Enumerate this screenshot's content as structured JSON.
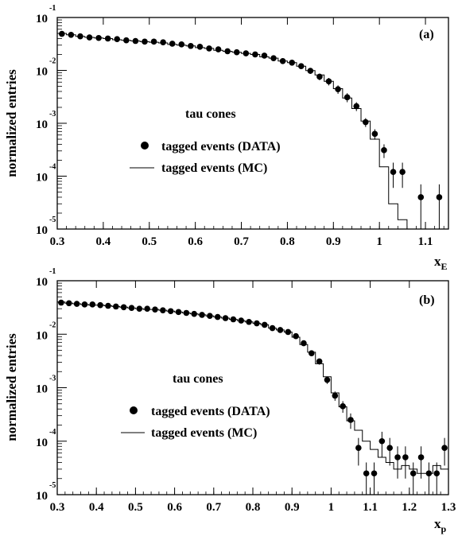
{
  "chart_data": [
    {
      "type": "scatter",
      "panel_label": "(a)",
      "ylabel": "normalized entries",
      "xlabel_main": "x",
      "xlabel_sub": "E",
      "xlim": [
        0.3,
        1.15
      ],
      "ylim": [
        1e-05,
        0.1
      ],
      "yscale": "log",
      "x_ticks": [
        "0.3",
        "0.4",
        "0.5",
        "0.6",
        "0.7",
        "0.8",
        "0.9",
        "1",
        "1.1"
      ],
      "x_tick_values": [
        0.3,
        0.4,
        0.5,
        0.6,
        0.7,
        0.8,
        0.9,
        1.0,
        1.1
      ],
      "y_ticks": [
        {
          "base": "10",
          "exp": "-1",
          "value": 0.1
        },
        {
          "base": "10",
          "exp": "-2",
          "value": 0.01
        },
        {
          "base": "10",
          "exp": "-3",
          "value": 0.001
        },
        {
          "base": "10",
          "exp": "-4",
          "value": 0.0001
        },
        {
          "base": "10",
          "exp": "-5",
          "value": 1e-05
        }
      ],
      "legend": {
        "title": "tau cones",
        "entries": [
          {
            "marker": "dot",
            "label": "tagged events (DATA)"
          },
          {
            "marker": "line",
            "label": "tagged events (MC)"
          }
        ]
      },
      "series": [
        {
          "name": "tagged events (DATA)",
          "kind": "points",
          "x": [
            0.31,
            0.33,
            0.35,
            0.37,
            0.39,
            0.41,
            0.43,
            0.45,
            0.47,
            0.49,
            0.51,
            0.53,
            0.55,
            0.57,
            0.59,
            0.61,
            0.63,
            0.65,
            0.67,
            0.69,
            0.71,
            0.73,
            0.75,
            0.77,
            0.79,
            0.81,
            0.83,
            0.85,
            0.87,
            0.89,
            0.91,
            0.93,
            0.95,
            0.97,
            0.99,
            1.01,
            1.03,
            1.05,
            1.09,
            1.13
          ],
          "y": [
            0.049,
            0.047,
            0.044,
            0.042,
            0.041,
            0.04,
            0.039,
            0.037,
            0.036,
            0.035,
            0.035,
            0.034,
            0.032,
            0.031,
            0.029,
            0.028,
            0.026,
            0.025,
            0.023,
            0.022,
            0.021,
            0.02,
            0.019,
            0.017,
            0.015,
            0.014,
            0.012,
            0.0098,
            0.0076,
            0.0062,
            0.0044,
            0.0031,
            0.0021,
            0.00105,
            0.00063,
            0.00031,
            0.00012,
            0.00012,
            4e-05,
            4e-05
          ],
          "err": [
            0.001,
            0.001,
            0.001,
            0.001,
            0.001,
            0.001,
            0.001,
            0.001,
            0.001,
            0.001,
            0.001,
            0.001,
            0.001,
            0.001,
            0.001,
            0.001,
            0.001,
            0.001,
            0.001,
            0.001,
            0.001,
            0.001,
            0.001,
            0.001,
            0.001,
            0.001,
            0.001,
            0.0012,
            0.0011,
            0.001,
            0.0008,
            0.0006,
            0.0004,
            0.0002,
            0.00014,
            9e-05,
            6e-05,
            6e-05,
            3e-05,
            3e-05
          ]
        },
        {
          "name": "tagged events (MC)",
          "kind": "step",
          "x_edges": [
            0.3,
            0.32,
            0.34,
            0.36,
            0.38,
            0.4,
            0.42,
            0.44,
            0.46,
            0.48,
            0.5,
            0.52,
            0.54,
            0.56,
            0.58,
            0.6,
            0.62,
            0.64,
            0.66,
            0.68,
            0.7,
            0.72,
            0.74,
            0.76,
            0.78,
            0.8,
            0.82,
            0.84,
            0.86,
            0.88,
            0.9,
            0.92,
            0.94,
            0.96,
            0.98,
            1.0,
            1.02,
            1.04,
            1.06
          ],
          "y": [
            0.05,
            0.047,
            0.044,
            0.042,
            0.041,
            0.04,
            0.038,
            0.037,
            0.036,
            0.035,
            0.034,
            0.033,
            0.031,
            0.03,
            0.029,
            0.027,
            0.026,
            0.024,
            0.023,
            0.022,
            0.021,
            0.02,
            0.018,
            0.017,
            0.015,
            0.014,
            0.012,
            0.0099,
            0.0082,
            0.0062,
            0.0045,
            0.003,
            0.0019,
            0.0011,
            0.0005,
            0.00015,
            3e-05,
            1.5e-05
          ]
        }
      ]
    },
    {
      "type": "scatter",
      "panel_label": "(b)",
      "ylabel": "normalized entries",
      "xlabel_main": "x",
      "xlabel_sub": "p",
      "xlim": [
        0.3,
        1.3
      ],
      "ylim": [
        1e-05,
        0.1
      ],
      "yscale": "log",
      "x_ticks": [
        "0.3",
        "0.4",
        "0.5",
        "0.6",
        "0.7",
        "0.8",
        "0.9",
        "1",
        "1.1",
        "1.2",
        "1.3"
      ],
      "x_tick_values": [
        0.3,
        0.4,
        0.5,
        0.6,
        0.7,
        0.8,
        0.9,
        1.0,
        1.1,
        1.2,
        1.3
      ],
      "y_ticks": [
        {
          "base": "10",
          "exp": "-1",
          "value": 0.1
        },
        {
          "base": "10",
          "exp": "-2",
          "value": 0.01
        },
        {
          "base": "10",
          "exp": "-3",
          "value": 0.001
        },
        {
          "base": "10",
          "exp": "-4",
          "value": 0.0001
        },
        {
          "base": "10",
          "exp": "-5",
          "value": 1e-05
        }
      ],
      "legend": {
        "title": "tau cones",
        "entries": [
          {
            "marker": "dot",
            "label": "tagged events (DATA)"
          },
          {
            "marker": "line",
            "label": "tagged events (MC)"
          }
        ]
      },
      "series": [
        {
          "name": "tagged events (DATA)",
          "kind": "points",
          "x": [
            0.31,
            0.33,
            0.35,
            0.37,
            0.39,
            0.41,
            0.43,
            0.45,
            0.47,
            0.49,
            0.51,
            0.53,
            0.55,
            0.57,
            0.59,
            0.61,
            0.63,
            0.65,
            0.67,
            0.69,
            0.71,
            0.73,
            0.75,
            0.77,
            0.79,
            0.81,
            0.83,
            0.85,
            0.87,
            0.89,
            0.91,
            0.93,
            0.95,
            0.97,
            0.99,
            1.01,
            1.03,
            1.05,
            1.07,
            1.09,
            1.11,
            1.13,
            1.15,
            1.17,
            1.19,
            1.21,
            1.23,
            1.25,
            1.27,
            1.29
          ],
          "y": [
            0.039,
            0.038,
            0.037,
            0.036,
            0.036,
            0.035,
            0.034,
            0.033,
            0.032,
            0.031,
            0.03,
            0.03,
            0.029,
            0.028,
            0.027,
            0.026,
            0.025,
            0.024,
            0.023,
            0.022,
            0.021,
            0.02,
            0.019,
            0.018,
            0.017,
            0.016,
            0.015,
            0.013,
            0.012,
            0.011,
            0.0092,
            0.0068,
            0.0044,
            0.0031,
            0.0014,
            0.00071,
            0.00045,
            0.00025,
            7.5e-05,
            2.5e-05,
            2.5e-05,
            0.0001,
            7.5e-05,
            5e-05,
            5e-05,
            2.5e-05,
            5e-05,
            2.5e-05,
            2.5e-05,
            7.5e-05
          ],
          "err": [
            0.0008,
            0.0008,
            0.0008,
            0.0008,
            0.0008,
            0.0008,
            0.0008,
            0.0008,
            0.0008,
            0.0008,
            0.0008,
            0.0008,
            0.0008,
            0.0008,
            0.0008,
            0.0008,
            0.0008,
            0.0008,
            0.0008,
            0.0008,
            0.0008,
            0.0008,
            0.0008,
            0.0008,
            0.0008,
            0.0008,
            0.0008,
            0.0009,
            0.0009,
            0.0009,
            0.0008,
            0.0007,
            0.0005,
            0.0004,
            0.00022,
            0.00014,
            0.00011,
            8e-05,
            4e-05,
            1.5e-05,
            1.5e-05,
            5e-05,
            4e-05,
            3e-05,
            3e-05,
            1.5e-05,
            3e-05,
            1.5e-05,
            1.5e-05,
            4e-05
          ]
        },
        {
          "name": "tagged events (MC)",
          "kind": "step",
          "x_edges": [
            0.3,
            0.32,
            0.34,
            0.36,
            0.38,
            0.4,
            0.42,
            0.44,
            0.46,
            0.48,
            0.5,
            0.52,
            0.54,
            0.56,
            0.58,
            0.6,
            0.62,
            0.64,
            0.66,
            0.68,
            0.7,
            0.72,
            0.74,
            0.76,
            0.78,
            0.8,
            0.82,
            0.84,
            0.86,
            0.88,
            0.9,
            0.92,
            0.94,
            0.96,
            0.98,
            1.0,
            1.02,
            1.04,
            1.06,
            1.08,
            1.1,
            1.12,
            1.14,
            1.16,
            1.18,
            1.2,
            1.22,
            1.24,
            1.26,
            1.28,
            1.3
          ],
          "y": [
            0.04,
            0.038,
            0.037,
            0.036,
            0.035,
            0.035,
            0.034,
            0.033,
            0.032,
            0.031,
            0.03,
            0.029,
            0.029,
            0.028,
            0.027,
            0.026,
            0.025,
            0.024,
            0.023,
            0.022,
            0.021,
            0.02,
            0.019,
            0.018,
            0.017,
            0.016,
            0.015,
            0.013,
            0.012,
            0.011,
            0.0088,
            0.0064,
            0.0046,
            0.0028,
            0.0016,
            0.0008,
            0.00044,
            0.00024,
            0.00016,
            0.0001,
            7e-05,
            5e-05,
            4e-05,
            3e-05,
            3.5e-05,
            3e-05,
            2.5e-05,
            2.5e-05,
            3.5e-05,
            3e-05
          ]
        }
      ]
    }
  ]
}
